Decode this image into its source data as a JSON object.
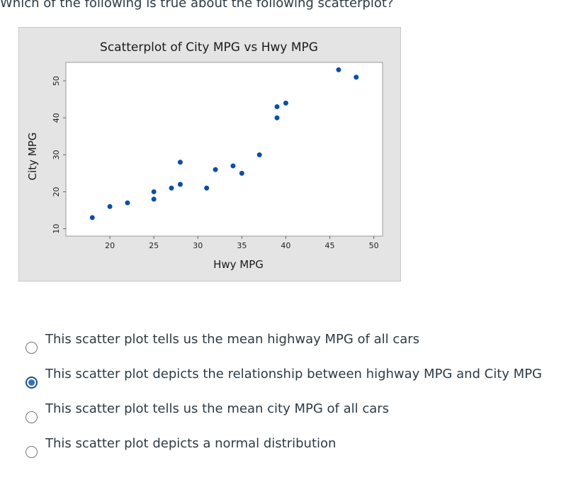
{
  "question": {
    "text": "Which of the following is true about the following scatterplot?"
  },
  "chart_data": {
    "type": "scatter",
    "title": "Scatterplot of City MPG vs Hwy MPG",
    "xlabel": "Hwy MPG",
    "ylabel": "City MPG",
    "xlim": [
      15,
      51
    ],
    "ylim": [
      8,
      55
    ],
    "xticks": [
      20,
      25,
      30,
      35,
      40,
      45,
      50
    ],
    "yticks": [
      10,
      20,
      30,
      40,
      50
    ],
    "grid": false,
    "series": [
      {
        "name": "City MPG vs Hwy MPG",
        "color": "#0a4fa8",
        "points": [
          {
            "x": 18,
            "y": 13
          },
          {
            "x": 20,
            "y": 16
          },
          {
            "x": 22,
            "y": 17
          },
          {
            "x": 25,
            "y": 18
          },
          {
            "x": 25,
            "y": 20
          },
          {
            "x": 27,
            "y": 21
          },
          {
            "x": 28,
            "y": 22
          },
          {
            "x": 28,
            "y": 28
          },
          {
            "x": 31,
            "y": 21
          },
          {
            "x": 32,
            "y": 26
          },
          {
            "x": 34,
            "y": 27
          },
          {
            "x": 35,
            "y": 25
          },
          {
            "x": 37,
            "y": 30
          },
          {
            "x": 39,
            "y": 40
          },
          {
            "x": 39,
            "y": 43
          },
          {
            "x": 40,
            "y": 44
          },
          {
            "x": 46,
            "y": 53
          },
          {
            "x": 48,
            "y": 51
          }
        ]
      }
    ]
  },
  "answers": [
    {
      "label": "This scatter plot tells us the mean highway MPG of all cars",
      "selected": false
    },
    {
      "label": "This scatter plot depicts the relationship between highway MPG and City MPG",
      "selected": true
    },
    {
      "label": "This scatter plot tells us the mean city MPG of all cars",
      "selected": false
    },
    {
      "label": "This scatter plot depicts a normal distribution",
      "selected": false
    }
  ]
}
